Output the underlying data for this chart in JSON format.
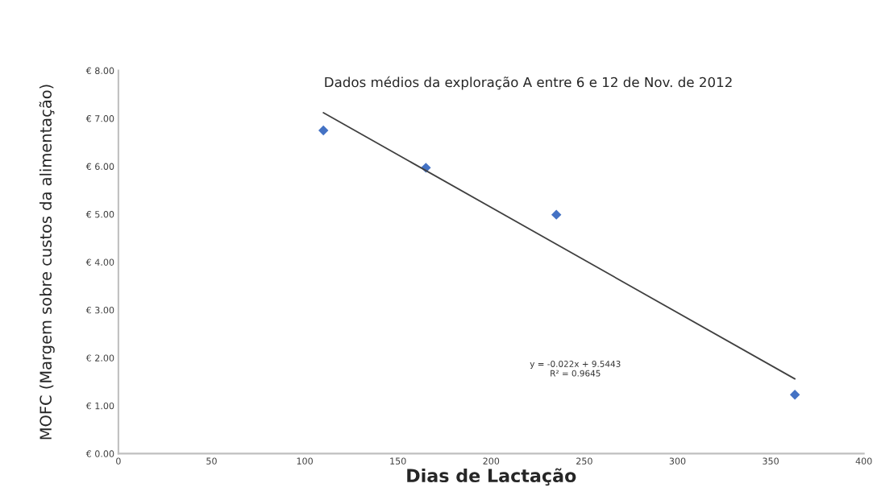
{
  "chart_data": {
    "type": "scatter",
    "title": "Dados médios da exploração A entre 6 e 12 de Nov. de 2012",
    "xlabel": "Dias de Lactação",
    "ylabel": "MOFC (Margem sobre custos da alimentação)",
    "series": [
      {
        "color": "#4472c4",
        "marker": "diamond",
        "x": [
          110,
          165,
          235,
          363
        ],
        "values": [
          6.75,
          5.97,
          4.99,
          1.23
        ]
      },
      {
        "type": "line",
        "color": "#404040",
        "marker": "none",
        "line_style": "solid",
        "x": [
          110,
          363
        ],
        "values": [
          7.12,
          1.56
        ]
      }
    ],
    "annotations": [
      "y = -0.022x + 9.5443\nR² = 0.9645"
    ],
    "xlim": [
      0,
      400
    ],
    "xticks": [
      0,
      50,
      100,
      150,
      200,
      250,
      300,
      350,
      400
    ],
    "ylim": [
      0,
      8
    ],
    "yticks": [
      {
        "value": 0,
        "label": "€ 0.00"
      },
      {
        "value": 1,
        "label": "€ 1.00"
      },
      {
        "value": 2,
        "label": "€ 2.00"
      },
      {
        "value": 3,
        "label": "€ 3.00"
      },
      {
        "value": 4,
        "label": "€ 4.00"
      },
      {
        "value": 5,
        "label": "€ 5.00"
      },
      {
        "value": 6,
        "label": "€ 6.00"
      },
      {
        "value": 7,
        "label": "€ 7.00"
      },
      {
        "value": 8,
        "label": "€ 8.00"
      }
    ],
    "grid": false,
    "legend": false
  }
}
